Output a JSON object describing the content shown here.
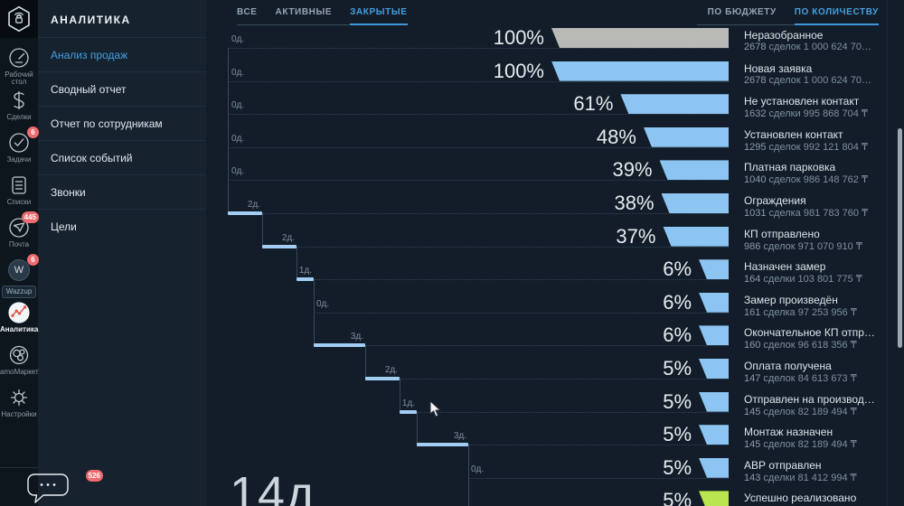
{
  "brand": {
    "accent": "#459fe0",
    "bar_blue": "#8cc5f2",
    "bar_gray": "#b9b9b5",
    "bar_green": "#b9e64f",
    "badge_red": "#ee6b70"
  },
  "rail": {
    "items": [
      {
        "label": "Рабочий стол",
        "icon": "dashboard-icon"
      },
      {
        "label": "Сделки",
        "icon": "deals-icon"
      },
      {
        "label": "Задачи",
        "icon": "tasks-icon",
        "badge": "6"
      },
      {
        "label": "Списки",
        "icon": "lists-icon"
      },
      {
        "label": "Почта",
        "icon": "mail-icon",
        "badge": "445"
      },
      {
        "label": "Wazzup",
        "icon": "wazzup-icon",
        "badge": "6",
        "boxed": true
      },
      {
        "label": "Аналитика",
        "icon": "analytics-icon",
        "active": true
      },
      {
        "label": "amoМаркет",
        "icon": "market-icon"
      },
      {
        "label": "Настройки",
        "icon": "settings-icon"
      }
    ],
    "chat_badge": "526"
  },
  "sidebar": {
    "title": "АНАЛИТИКА",
    "items": [
      {
        "label": "Анализ продаж",
        "active": true
      },
      {
        "label": "Сводный отчет"
      },
      {
        "label": "Отчет по сотрудникам"
      },
      {
        "label": "Список событий"
      },
      {
        "label": "Звонки"
      },
      {
        "label": "Цели"
      }
    ]
  },
  "tabs": {
    "left": [
      {
        "label": "ВСЕ"
      },
      {
        "label": "АКТИВНЫЕ"
      },
      {
        "label": "ЗАКРЫТЫЕ",
        "active": true
      }
    ],
    "right": [
      {
        "label": "ПО БЮДЖЕТУ"
      },
      {
        "label": "ПО КОЛИЧЕСТВУ",
        "active": true
      }
    ]
  },
  "chart_data": {
    "type": "bar",
    "subtype": "sales-funnel",
    "currency": "₸",
    "total_label": "14д",
    "legend_position": "right",
    "xlim_percent": [
      0,
      100
    ],
    "stages": [
      {
        "name": "Неразобранное",
        "count": "2678",
        "count_suffix": "сделок 1 000 624 70…",
        "percent": 100,
        "days": 0,
        "day_label": "0д.",
        "color": "gray"
      },
      {
        "name": "Новая заявка",
        "count": "2678",
        "count_suffix": "сделок 1 000 624 70…",
        "percent": 100,
        "days": 0,
        "day_label": "0д.",
        "color": "blue"
      },
      {
        "name": "Не установлен контакт",
        "count": "1632",
        "count_suffix": "сделки 995 868 704 ₸",
        "percent": 61,
        "days": 0,
        "day_label": "0д.",
        "color": "blue"
      },
      {
        "name": "Установлен контакт",
        "count": "1295",
        "count_suffix": "сделок 992 121 804 ₸",
        "percent": 48,
        "days": 0,
        "day_label": "0д.",
        "color": "blue"
      },
      {
        "name": "Платная парковка",
        "count": "1040",
        "count_suffix": "сделок 986 148 762 ₸",
        "percent": 39,
        "days": 0,
        "day_label": "0д.",
        "color": "blue"
      },
      {
        "name": "Ограждения",
        "count": "1031",
        "count_suffix": "сделка 981 783 760 ₸",
        "percent": 38,
        "days": 2,
        "day_label": "2д.",
        "color": "blue"
      },
      {
        "name": "КП отправлено",
        "count": "986",
        "count_suffix": "сделок 971 070 910 ₸",
        "percent": 37,
        "days": 2,
        "day_label": "2д.",
        "color": "blue"
      },
      {
        "name": "Назначен замер",
        "count": "164",
        "count_suffix": "сделки 103 801 775 ₸",
        "percent": 6,
        "days": 1,
        "day_label": "1д.",
        "color": "blue"
      },
      {
        "name": "Замер произведён",
        "count": "161",
        "count_suffix": "сделка 97 253 956 ₸",
        "percent": 6,
        "days": 0,
        "day_label": "0д.",
        "color": "blue"
      },
      {
        "name": "Окончательное КП отпр…",
        "count": "160",
        "count_suffix": "сделок 96 618 356 ₸",
        "percent": 6,
        "days": 3,
        "day_label": "3д.",
        "color": "blue"
      },
      {
        "name": "Оплата получена",
        "count": "147",
        "count_suffix": "сделок 84 613 673 ₸",
        "percent": 5,
        "days": 2,
        "day_label": "2д.",
        "color": "blue"
      },
      {
        "name": "Отправлен на производ…",
        "count": "145",
        "count_suffix": "сделок 82 189 494 ₸",
        "percent": 5,
        "days": 1,
        "day_label": "1д.",
        "color": "blue"
      },
      {
        "name": "Монтаж назначен",
        "count": "145",
        "count_suffix": "сделок 82 189 494 ₸",
        "percent": 5,
        "days": 3,
        "day_label": "3д.",
        "color": "blue"
      },
      {
        "name": "АВР отправлен",
        "count": "143",
        "count_suffix": "сделки 81 412 994 ₸",
        "percent": 5,
        "days": 0,
        "day_label": "0д.",
        "color": "blue"
      },
      {
        "name": "Успешно реализовано",
        "count": "143",
        "count_suffix": "сделки 81 412 994 ₸",
        "percent": 5,
        "days": null,
        "day_label": null,
        "color": "green"
      }
    ]
  }
}
